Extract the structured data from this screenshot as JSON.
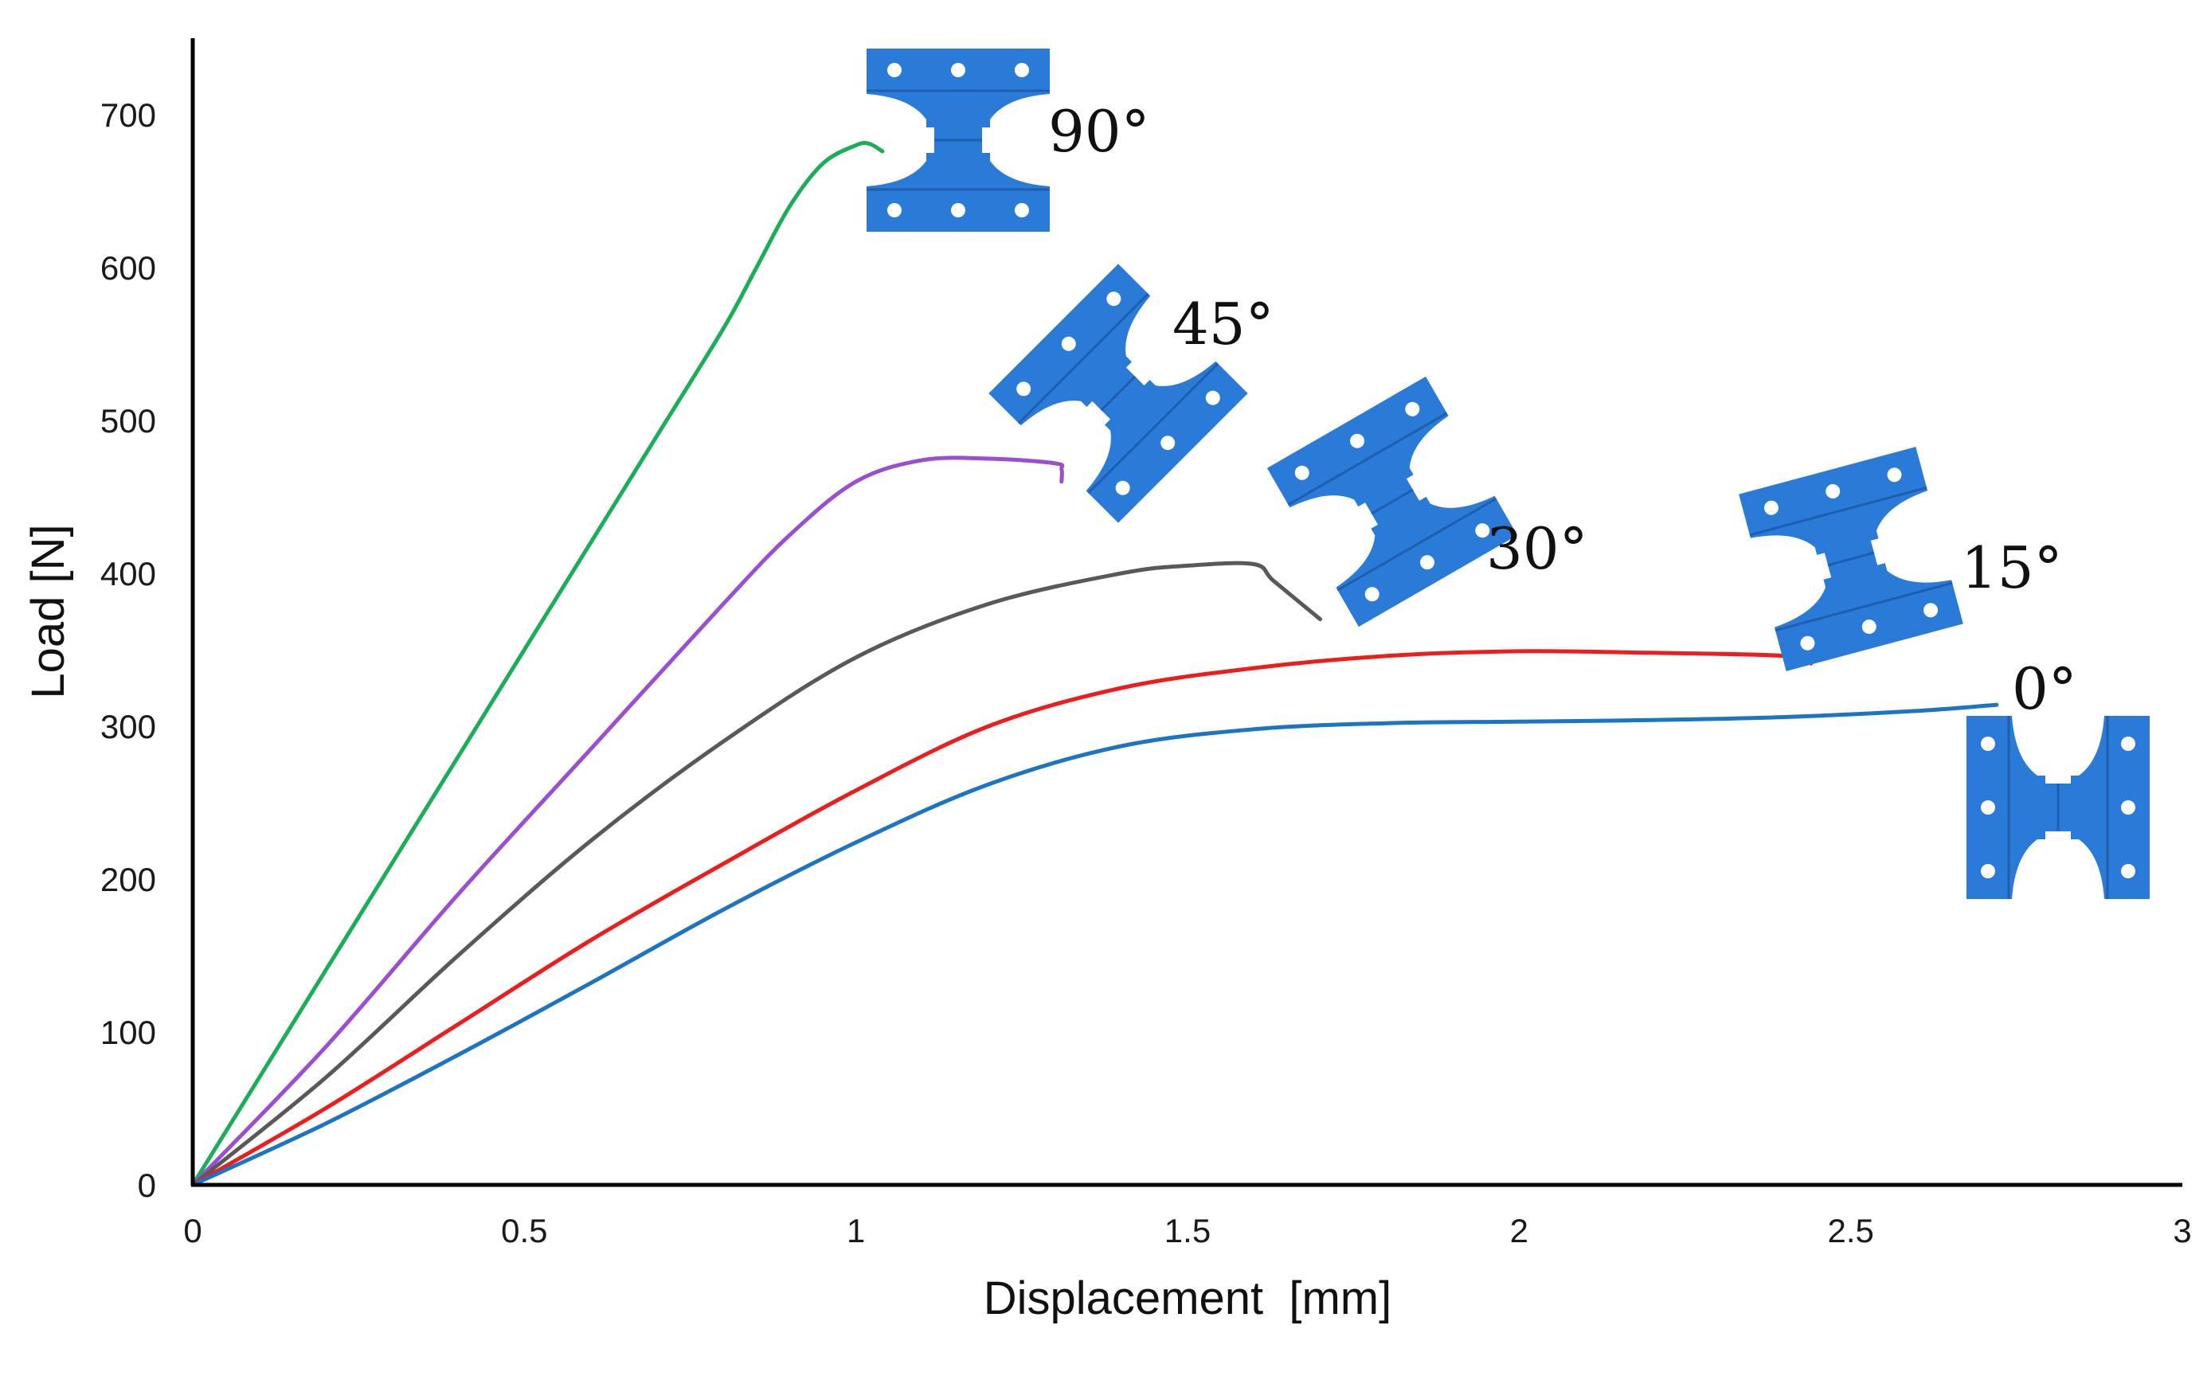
{
  "chart_data": {
    "type": "line",
    "title": "",
    "xlabel": "Displacement  [mm]",
    "ylabel": "Load [N]",
    "xlim": [
      0,
      3
    ],
    "ylim": [
      0,
      750
    ],
    "xticks": [
      0,
      0.5,
      1,
      1.5,
      2,
      2.5,
      3
    ],
    "xtick_labels": [
      "0",
      "0.5",
      "1",
      "1.5",
      "2",
      "2.5",
      "3"
    ],
    "yticks": [
      0,
      100,
      200,
      300,
      400,
      500,
      600,
      700
    ],
    "ytick_labels": [
      "0",
      "100",
      "200",
      "300",
      "400",
      "500",
      "600",
      "700"
    ],
    "grid": false,
    "legend": "none (series labelled inline with specimen images)",
    "series": [
      {
        "name": "90°",
        "label": "90°",
        "color": "#1aae5a",
        "specimen_rotation_deg": 0,
        "x": [
          0,
          0.1,
          0.2,
          0.3,
          0.4,
          0.5,
          0.6,
          0.7,
          0.8,
          0.85,
          0.9,
          0.95,
          1.0,
          1.02,
          1.04
        ],
        "y": [
          0,
          70,
          140,
          210,
          280,
          350,
          420,
          490,
          560,
          600,
          640,
          668,
          680,
          681,
          676
        ]
      },
      {
        "name": "45°",
        "label": "45°",
        "color": "#9b4fd0",
        "specimen_rotation_deg": -45,
        "x": [
          0,
          0.2,
          0.4,
          0.6,
          0.8,
          0.9,
          1.0,
          1.1,
          1.2,
          1.3,
          1.31,
          1.31
        ],
        "y": [
          0,
          90,
          190,
          285,
          380,
          425,
          460,
          474,
          475,
          472,
          468,
          460
        ]
      },
      {
        "name": "30°",
        "label": "30°",
        "color": "#595959",
        "specimen_rotation_deg": -30,
        "x": [
          0,
          0.2,
          0.4,
          0.6,
          0.8,
          1.0,
          1.2,
          1.4,
          1.5,
          1.6,
          1.63,
          1.7
        ],
        "y": [
          0,
          70,
          150,
          225,
          290,
          345,
          380,
          400,
          405,
          406,
          395,
          370
        ]
      },
      {
        "name": "15°",
        "label": "15°",
        "color": "#ee1c1c",
        "specimen_rotation_deg": -15,
        "x": [
          0,
          0.2,
          0.4,
          0.6,
          0.8,
          1.0,
          1.2,
          1.4,
          1.6,
          1.8,
          2.0,
          2.2,
          2.4,
          2.44
        ],
        "y": [
          0,
          50,
          105,
          160,
          210,
          258,
          300,
          325,
          338,
          346,
          349,
          348,
          346,
          341
        ]
      },
      {
        "name": "0°",
        "label": "0°",
        "color": "#1c74c4",
        "specimen_rotation_deg": 0,
        "x": [
          0,
          0.2,
          0.4,
          0.6,
          0.8,
          1.0,
          1.2,
          1.4,
          1.6,
          1.8,
          2.0,
          2.2,
          2.4,
          2.6,
          2.72
        ],
        "y": [
          0,
          40,
          85,
          132,
          180,
          224,
          262,
          287,
          298,
          302,
          303,
          304,
          306,
          310,
          314
        ]
      }
    ]
  }
}
